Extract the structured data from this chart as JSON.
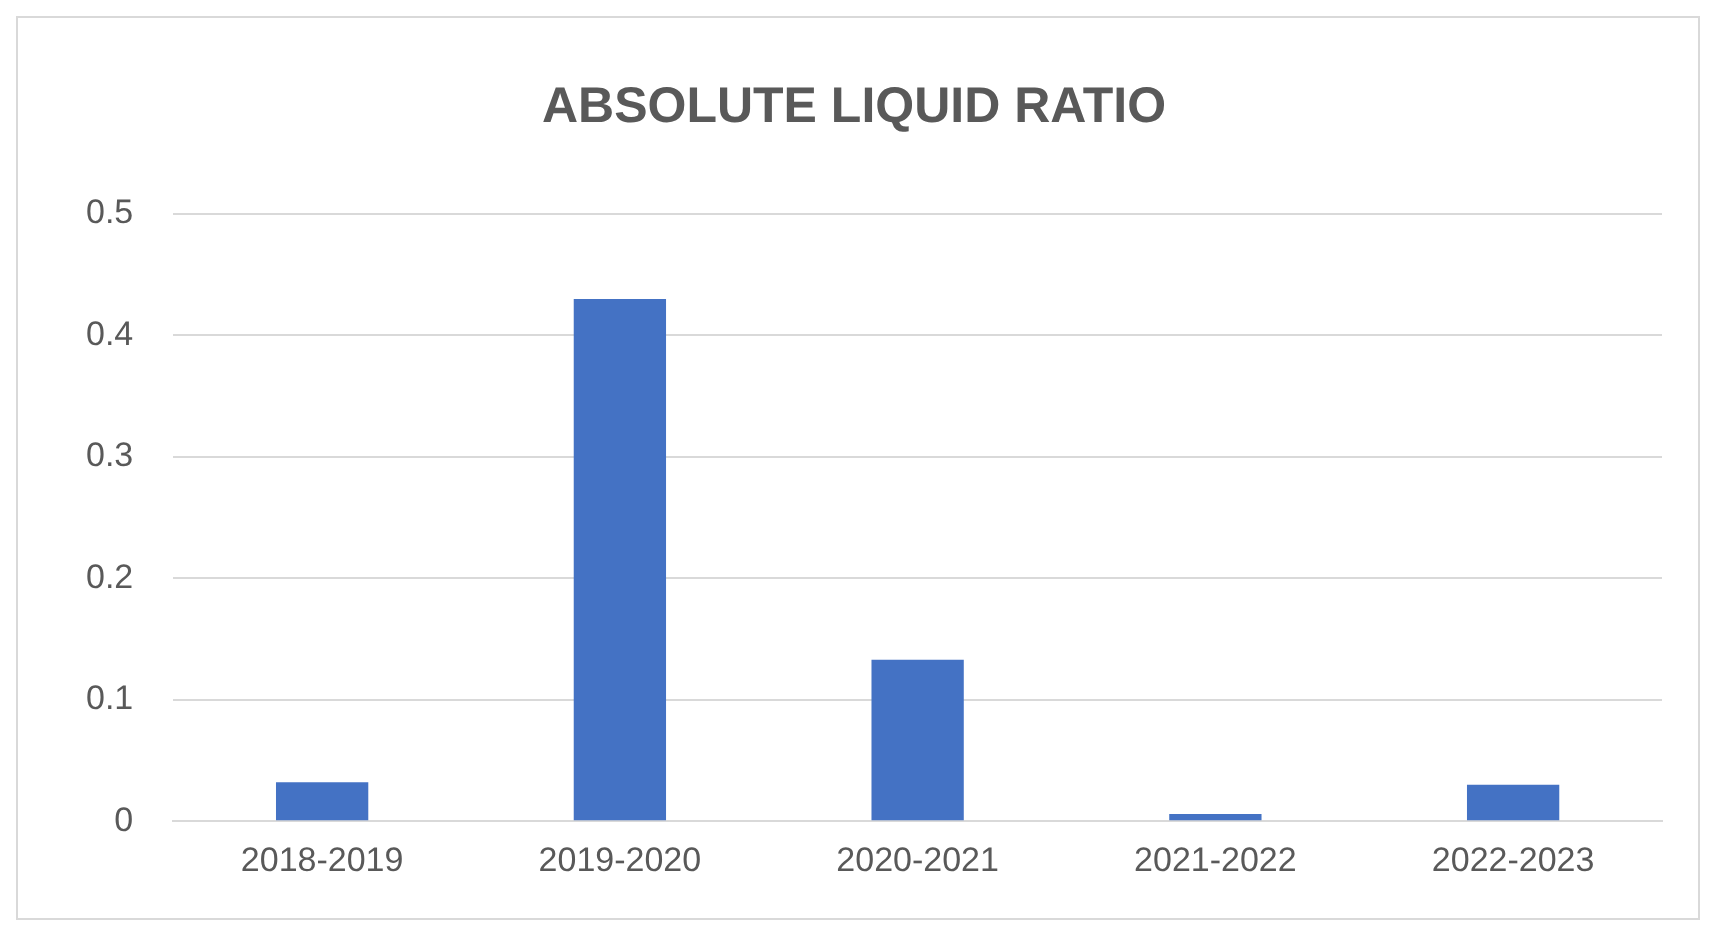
{
  "chart_data": {
    "type": "bar",
    "title": "ABSOLUTE LIQUID RATIO",
    "categories": [
      "2018-2019",
      "2019-2020",
      "2020-2021",
      "2021-2022",
      "2022-2023"
    ],
    "values": [
      0.032,
      0.43,
      0.133,
      0.006,
      0.03
    ],
    "color": "#4472c4",
    "ylim": [
      0,
      0.5
    ],
    "yticks": [
      0,
      0.1,
      0.2,
      0.3,
      0.4,
      0.5
    ],
    "grid": "y",
    "legend": false
  }
}
